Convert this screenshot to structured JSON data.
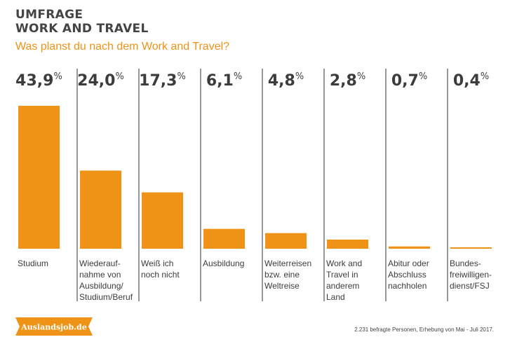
{
  "header": {
    "title_line1": "UMFRAGE",
    "title_line2": "WORK AND TRAVEL",
    "subtitle": "Was planst du nach dem Work and Travel?"
  },
  "logo_text": "Auslandsjob.de",
  "footer_text": "2.231 befragte Personen, Erhebung von Mai - Juli 2017.",
  "colors": {
    "bar": "#ef9317",
    "text": "#3c3c3c",
    "divider": "#555555",
    "subtitle": "#ef9317"
  },
  "chart_data": {
    "type": "bar",
    "title": "UMFRAGE WORK AND TRAVEL",
    "subtitle": "Was planst du nach dem Work and Travel?",
    "categories": [
      [
        "Studium"
      ],
      [
        "Wiederauf-",
        "nahme von",
        "Ausbildung/",
        "Studium/Beruf"
      ],
      [
        "Weiß ich",
        "noch nicht"
      ],
      [
        "Ausbildung"
      ],
      [
        "Weiterreisen",
        "bzw. eine",
        "Weltreise"
      ],
      [
        "Work and",
        "Travel in",
        "anderem",
        "Land"
      ],
      [
        "Abitur oder",
        "Abschluss",
        "nachholen"
      ],
      [
        "Bundes-",
        "freiwilligen-",
        "dienst/FSJ"
      ]
    ],
    "values": [
      43.9,
      24.0,
      17.3,
      6.1,
      4.8,
      2.8,
      0.7,
      0.4
    ],
    "value_labels": [
      "43,9",
      "24,0",
      "17,3",
      "6,1",
      "4,8",
      "2,8",
      "0,7",
      "0,4"
    ],
    "unit": "%",
    "xlabel": "",
    "ylabel": "",
    "ylim": [
      0,
      43.9
    ],
    "grid": false,
    "legend": "none"
  }
}
